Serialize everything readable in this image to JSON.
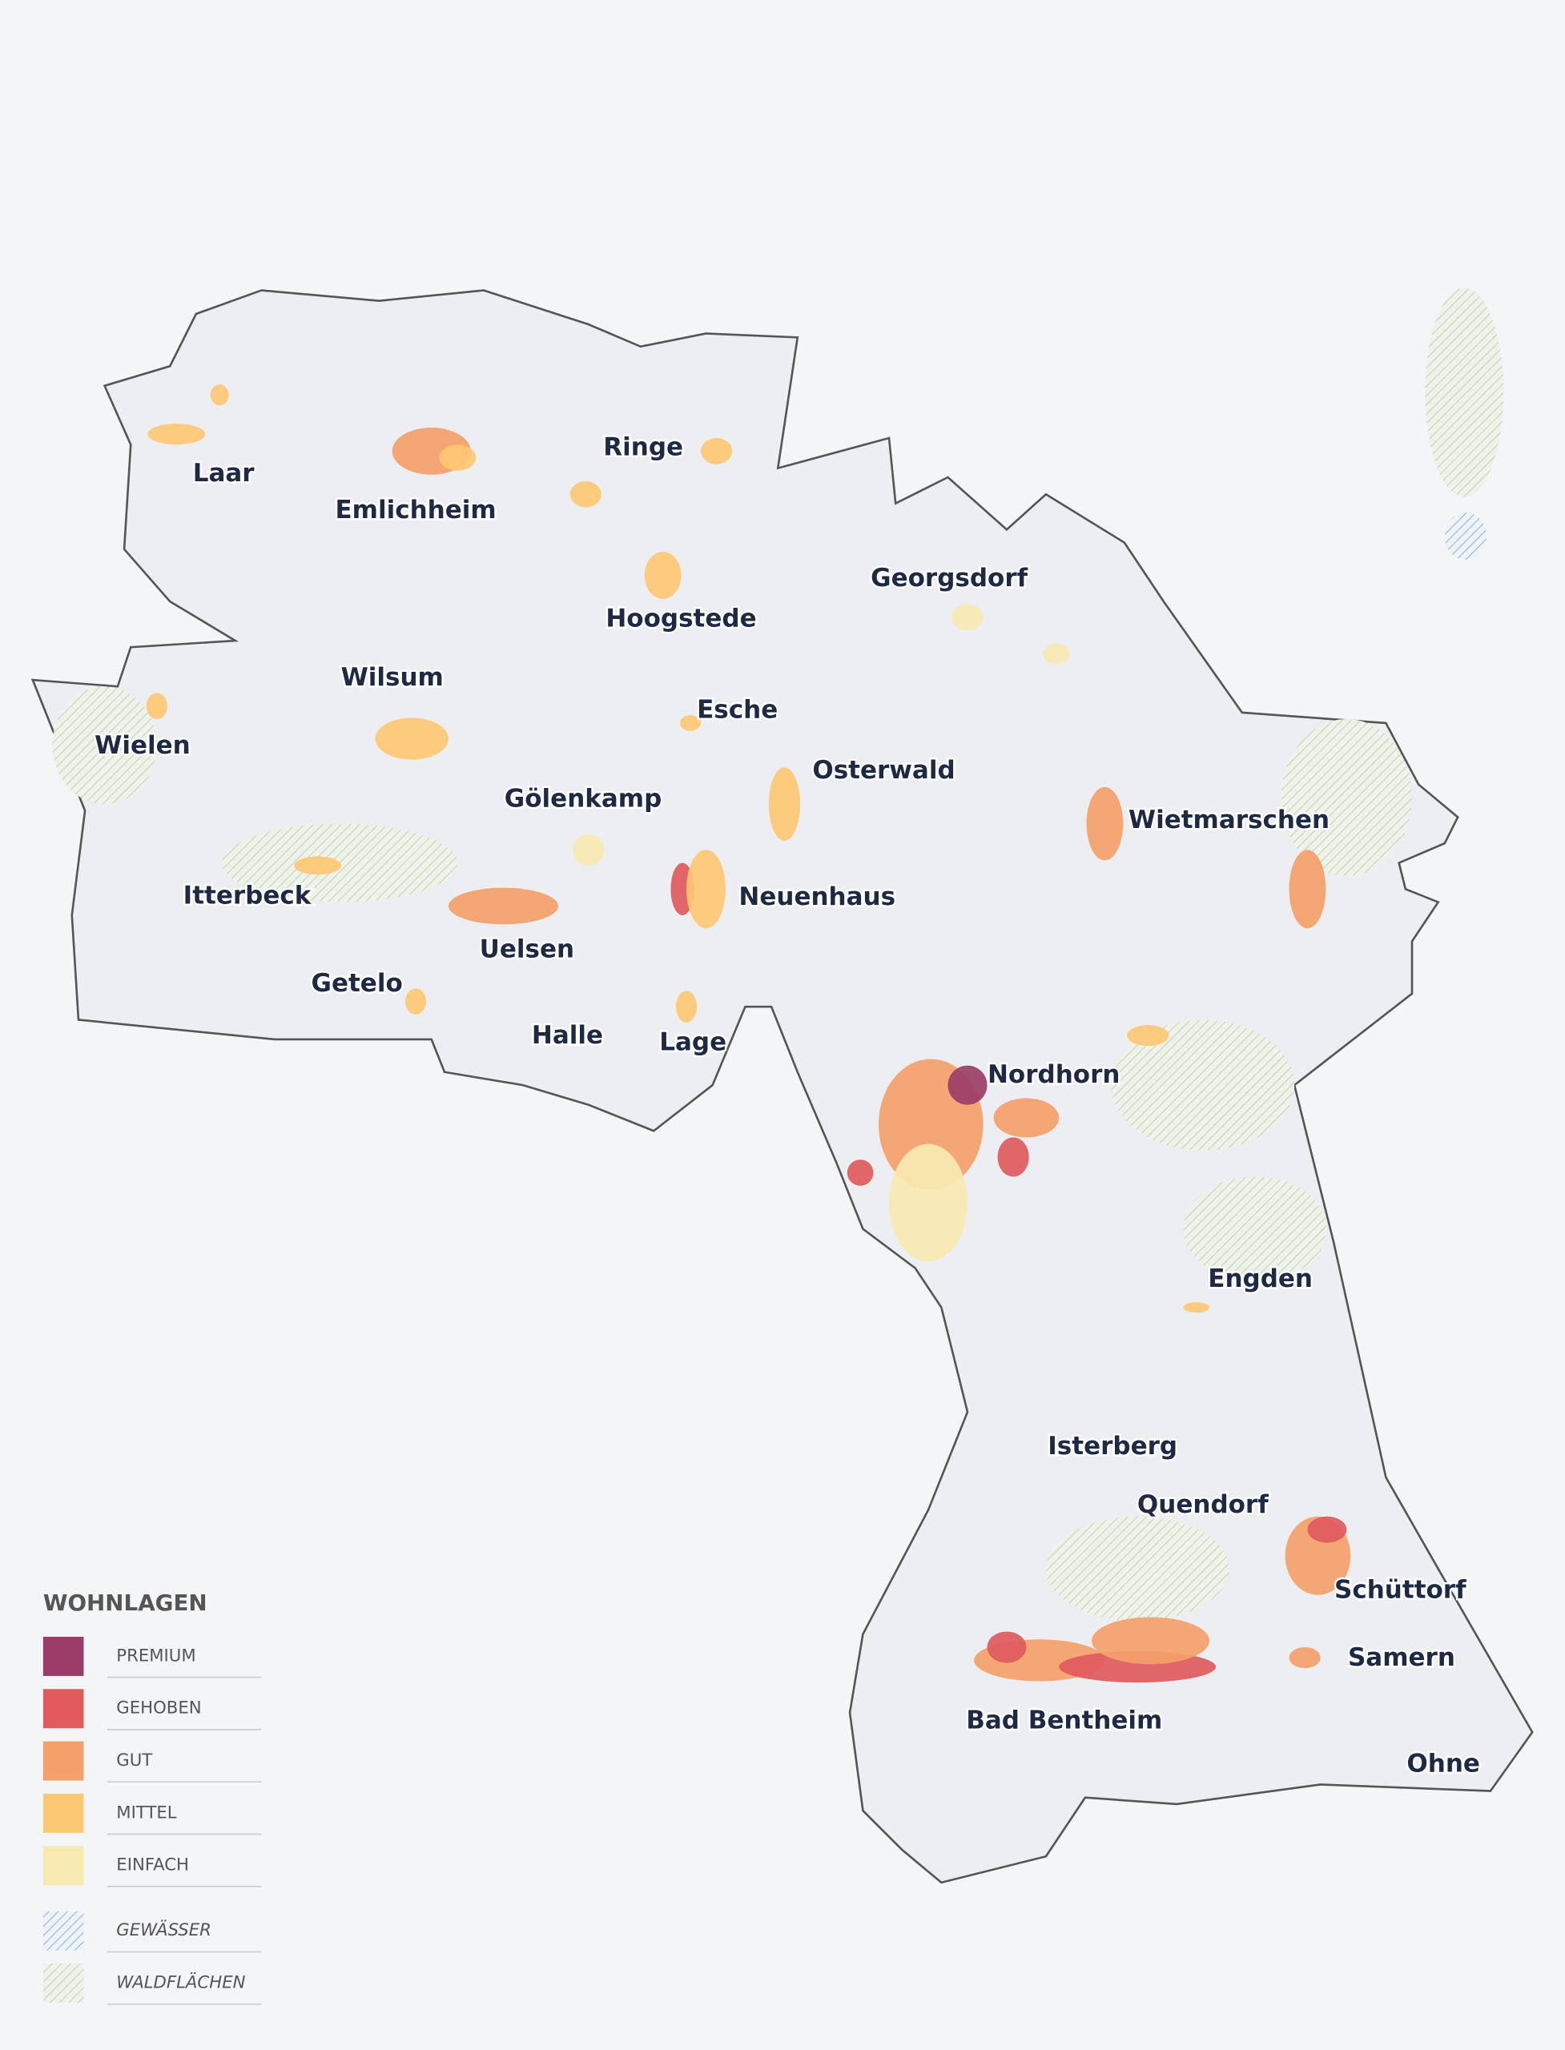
{
  "map": {
    "places": [
      "Laar",
      "Emlichheim",
      "Ringe",
      "Hoogstede",
      "Georgsdorf",
      "Wilsum",
      "Esche",
      "Wielen",
      "Osterwald",
      "Gölenkamp",
      "Wietmarschen",
      "Itterbeck",
      "Neuenhaus",
      "Uelsen",
      "Getelo",
      "Halle",
      "Lage",
      "Nordhorn",
      "Engden",
      "Isterberg",
      "Quendorf",
      "Schüttorf",
      "Samern",
      "Bad Bentheim",
      "Ohne"
    ]
  },
  "legend": {
    "title": "WOHNLAGEN",
    "items": [
      {
        "label": "PREMIUM",
        "color": "#9b3d68"
      },
      {
        "label": "GEHOBEN",
        "color": "#e05a5e"
      },
      {
        "label": "GUT",
        "color": "#f4a06a"
      },
      {
        "label": "MITTEL",
        "color": "#fdc873"
      },
      {
        "label": "EINFACH",
        "color": "#f7e9b2"
      }
    ],
    "layers": [
      "GEWÄSSER",
      "WALDFLÄCHEN"
    ]
  }
}
